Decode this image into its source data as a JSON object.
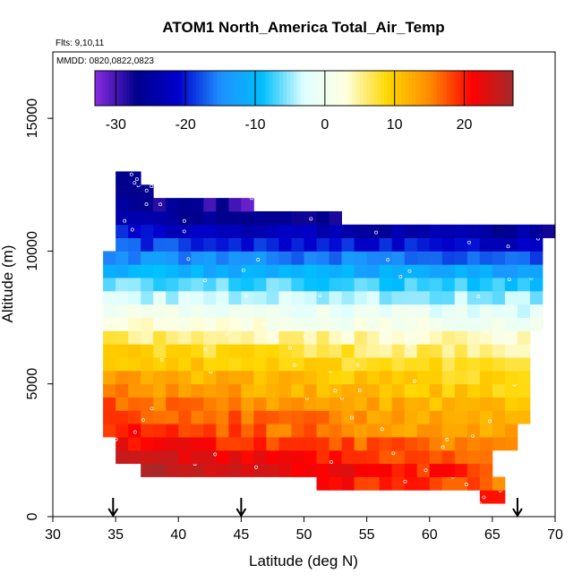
{
  "chart_data": {
    "type": "heatmap",
    "title": "ATOM1 North_America Total_Air_Temp",
    "flights_text": "Flts: 9,10,11",
    "dates_text": "MMDD: 0820,0822,0823",
    "xlabel": "Latitude (deg N)",
    "ylabel": "Altitude (m)",
    "xlim": [
      30,
      70
    ],
    "ylim": [
      0,
      17500
    ],
    "x_ticks": [
      30,
      35,
      40,
      45,
      50,
      55,
      60,
      65,
      70
    ],
    "y_ticks": [
      0,
      5000,
      10000,
      15000
    ],
    "colorbar": {
      "range": [
        -33,
        27
      ],
      "ticks": [
        -30,
        -20,
        -10,
        0,
        10,
        20
      ],
      "stops": [
        "#8a2be2",
        "#00008b",
        "#0000cd",
        "#1e90ff",
        "#00bfff",
        "#e0ffff",
        "#ffffe0",
        "#ffd700",
        "#ff8c00",
        "#ff0000",
        "#a52a2a"
      ]
    },
    "cell_size": {
      "lat": 1.0,
      "alt": 500
    },
    "grid_rows": [
      {
        "alt": 500,
        "lat": [
          64,
          66
        ],
        "temp": [
          22,
          22
        ]
      },
      {
        "alt": 1000,
        "lat": [
          51,
          66
        ],
        "temp": [
          21,
          16
        ]
      },
      {
        "alt": 1500,
        "lat": [
          37,
          65
        ],
        "temp": [
          26,
          18
        ]
      },
      {
        "alt": 2000,
        "lat": [
          35,
          65
        ],
        "temp": [
          24,
          16
        ]
      },
      {
        "alt": 2500,
        "lat": [
          35,
          67
        ],
        "temp": [
          22,
          14
        ]
      },
      {
        "alt": 3000,
        "lat": [
          34,
          67
        ],
        "temp": [
          20,
          12
        ]
      },
      {
        "alt": 3500,
        "lat": [
          34,
          68
        ],
        "temp": [
          19,
          11
        ]
      },
      {
        "alt": 4000,
        "lat": [
          34,
          68
        ],
        "temp": [
          17,
          10
        ]
      },
      {
        "alt": 4500,
        "lat": [
          34,
          68
        ],
        "temp": [
          15,
          9
        ]
      },
      {
        "alt": 5000,
        "lat": [
          34,
          68
        ],
        "temp": [
          13,
          8
        ]
      },
      {
        "alt": 5500,
        "lat": [
          34,
          68
        ],
        "temp": [
          11,
          7
        ]
      },
      {
        "alt": 6000,
        "lat": [
          34,
          68
        ],
        "temp": [
          9,
          5
        ]
      },
      {
        "alt": 6500,
        "lat": [
          34,
          68
        ],
        "temp": [
          6,
          3
        ]
      },
      {
        "alt": 7000,
        "lat": [
          34,
          69
        ],
        "temp": [
          3,
          0
        ]
      },
      {
        "alt": 7500,
        "lat": [
          34,
          69
        ],
        "temp": [
          0,
          -2
        ]
      },
      {
        "alt": 8000,
        "lat": [
          34,
          69
        ],
        "temp": [
          -3,
          -5
        ]
      },
      {
        "alt": 8500,
        "lat": [
          34,
          69
        ],
        "temp": [
          -6,
          -9
        ]
      },
      {
        "alt": 9000,
        "lat": [
          34,
          69
        ],
        "temp": [
          -10,
          -13
        ]
      },
      {
        "alt": 9500,
        "lat": [
          34,
          69
        ],
        "temp": [
          -14,
          -17
        ]
      },
      {
        "alt": 10000,
        "lat": [
          35,
          69
        ],
        "temp": [
          -18,
          -22
        ]
      },
      {
        "alt": 10500,
        "lat": [
          35,
          70
        ],
        "temp": [
          -21,
          -26
        ]
      },
      {
        "alt": 11000,
        "lat": [
          35,
          53
        ],
        "temp": [
          -24,
          -28
        ]
      },
      {
        "alt": 11500,
        "lat": [
          35,
          46
        ],
        "temp": [
          -26,
          -30
        ]
      },
      {
        "alt": 12000,
        "lat": [
          35,
          38
        ],
        "temp": [
          -27,
          -28
        ]
      },
      {
        "alt": 12500,
        "lat": [
          35,
          37
        ],
        "temp": [
          -28,
          -28
        ]
      }
    ],
    "flight_markers_lat": [
      34.8,
      45.0,
      67.0
    ]
  }
}
